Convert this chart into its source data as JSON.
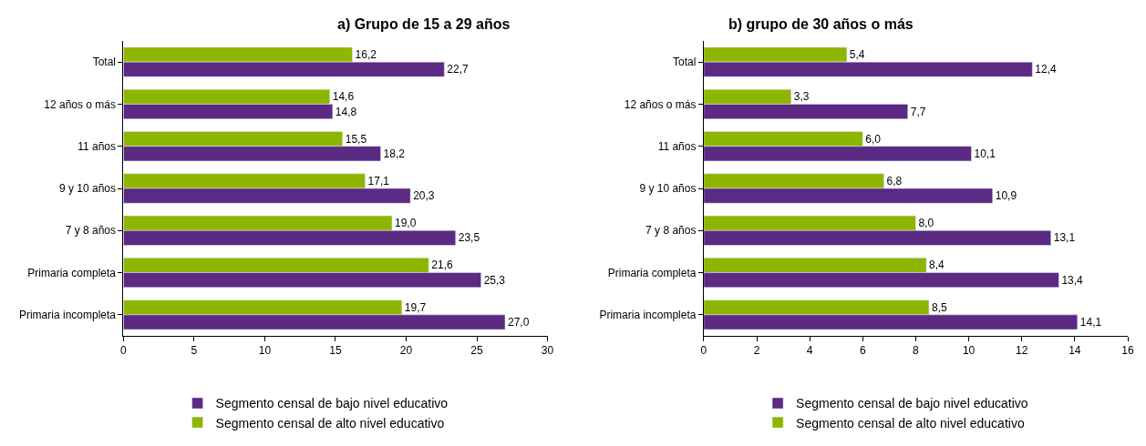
{
  "chart_data": [
    {
      "type": "bar",
      "orientation": "horizontal",
      "title": "a) Grupo de 15 a 29 años",
      "categories": [
        "Total",
        "12 años o más",
        "11 años",
        "9 y 10 años",
        "7 y 8 años",
        "Primaria completa",
        "Primaria incompleta"
      ],
      "series": [
        {
          "name": "Segmento censal de bajo nivel educativo",
          "color": "#5b2a82",
          "values": [
            22.7,
            14.8,
            18.2,
            20.3,
            23.5,
            25.3,
            27.0
          ],
          "value_labels": [
            "22,7",
            "14,8",
            "18,2",
            "20,3",
            "23,5",
            "25,3",
            "27,0"
          ]
        },
        {
          "name": "Segmento censal de alto nivel educativo",
          "color": "#8db600",
          "values": [
            16.2,
            14.6,
            15.5,
            17.1,
            19.0,
            21.6,
            19.7
          ],
          "value_labels": [
            "16,2",
            "14,6",
            "15,5",
            "17,1",
            "19,0",
            "21,6",
            "19,7"
          ]
        }
      ],
      "xlim": [
        0,
        30
      ],
      "xticks": [
        0,
        5,
        10,
        15,
        20,
        25,
        30
      ],
      "legend": "bottom"
    },
    {
      "type": "bar",
      "orientation": "horizontal",
      "title": "b) grupo de 30 años o más",
      "categories": [
        "Total",
        "12 años o más",
        "11 años",
        "9 y 10 años",
        "7 y 8 años",
        "Primaria completa",
        "Primaria incompleta"
      ],
      "series": [
        {
          "name": "Segmento censal de bajo nivel educativo",
          "color": "#5b2a82",
          "values": [
            12.4,
            7.7,
            10.1,
            10.9,
            13.1,
            13.4,
            14.1
          ],
          "value_labels": [
            "12,4",
            "7,7",
            "10,1",
            "10,9",
            "13,1",
            "13,4",
            "14,1"
          ]
        },
        {
          "name": "Segmento censal de alto nivel educativo",
          "color": "#8db600",
          "values": [
            5.4,
            3.3,
            6.0,
            6.8,
            8.0,
            8.4,
            8.5
          ],
          "value_labels": [
            "5,4",
            "3,3",
            "6,0",
            "6,8",
            "8,0",
            "8,4",
            "8,5"
          ]
        }
      ],
      "xlim": [
        0,
        16
      ],
      "xticks": [
        0,
        2,
        4,
        6,
        8,
        10,
        12,
        14,
        16
      ],
      "legend": "bottom"
    }
  ]
}
